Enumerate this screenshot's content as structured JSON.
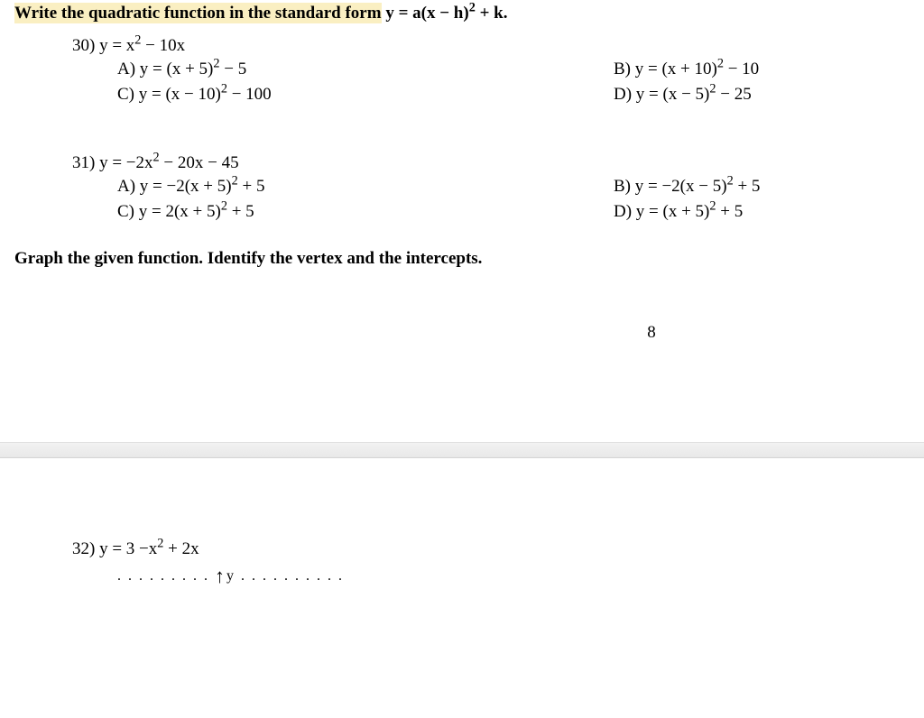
{
  "header": {
    "instruction_hl": "Write the quadratic function in the standard form",
    "instruction_rest": " y = a(x − h)",
    "instruction_exp": "2",
    "instruction_tail": " + k."
  },
  "q30": {
    "num": "30)",
    "stem_a": " y = x",
    "stem_exp": "2",
    "stem_b": " − 10x",
    "A_a": "A) y = (x + 5)",
    "A_exp": "2",
    "A_b": " − 5",
    "B_a": "B) y = (x + 10)",
    "B_exp": "2",
    "B_b": " − 10",
    "C_a": "C) y = (x − 10)",
    "C_exp": "2",
    "C_b": " − 100",
    "D_a": "D) y = (x − 5)",
    "D_exp": "2",
    "D_b": " − 25"
  },
  "q31": {
    "num": "31)",
    "stem_a": " y = −2x",
    "stem_exp": "2",
    "stem_b": " − 20x − 45",
    "A_a": "A) y = −2(x + 5)",
    "A_exp": "2",
    "A_b": " + 5",
    "B_a": "B) y = −2(x − 5)",
    "B_exp": "2",
    "B_b": " + 5",
    "C_a": "C) y = 2(x + 5)",
    "C_exp": "2",
    "C_b": " + 5",
    "D_a": "D) y = (x + 5)",
    "D_exp": "2",
    "D_b": " + 5"
  },
  "section2": "Graph the given function.  Identify the vertex and the intercepts.",
  "page_num": "8",
  "q32": {
    "num": "32)",
    "stem_a": " y = 3 −x",
    "stem_exp": "2",
    "stem_b": " + 2x"
  },
  "axis": {
    "dots_left": ". . . . . . . . . ",
    "arrow": "↑",
    "label": "y",
    "dots_right": " . . . . . . . . . ."
  }
}
